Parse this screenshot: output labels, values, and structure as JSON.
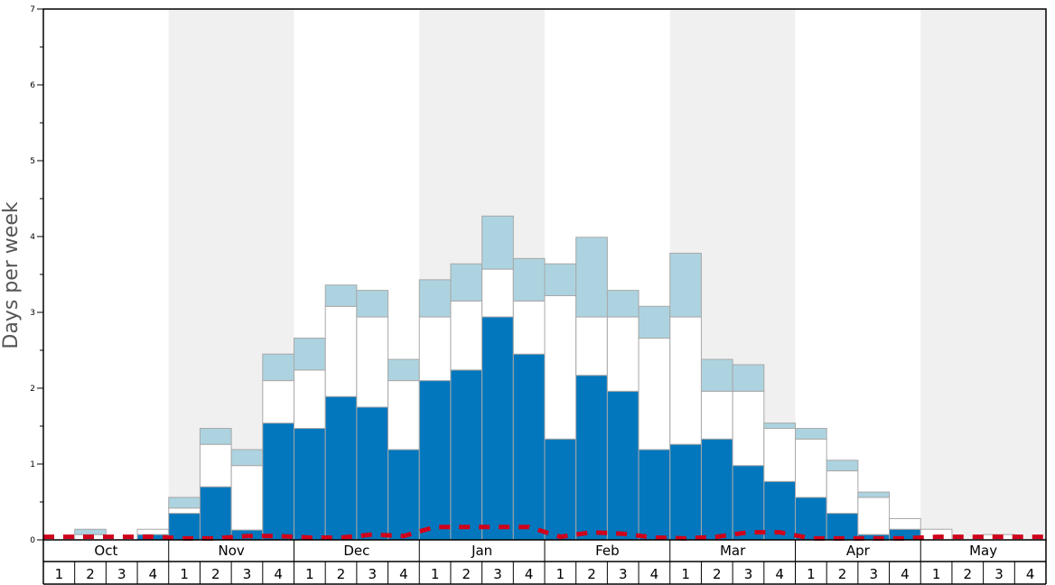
{
  "chart_data": {
    "type": "bar",
    "title": "",
    "xlabel": "",
    "ylabel": "Days per week",
    "ylim": [
      0,
      7
    ],
    "yticks": [
      0,
      1,
      2,
      3,
      4,
      5,
      6,
      7
    ],
    "months": [
      "Oct",
      "Nov",
      "Dec",
      "Jan",
      "Feb",
      "Mar",
      "Apr",
      "May"
    ],
    "week_labels": [
      "1",
      "2",
      "3",
      "4"
    ],
    "stacked": true,
    "series": [
      {
        "color": "#0277bd",
        "values": [
          0,
          0,
          0,
          0.07,
          0.35,
          0.7,
          0.13,
          1.54,
          1.47,
          1.89,
          1.75,
          1.19,
          2.1,
          2.24,
          2.94,
          2.45,
          1.33,
          2.17,
          1.96,
          1.19,
          1.26,
          1.33,
          0.98,
          0.77,
          0.56,
          0.35,
          0.07,
          0.14,
          0,
          0,
          0,
          0
        ]
      },
      {
        "color": "#ffffff",
        "values": [
          0,
          0.07,
          0,
          0.07,
          0.07,
          0.56,
          0.85,
          0.56,
          0.77,
          1.19,
          1.19,
          0.91,
          0.84,
          0.91,
          0.63,
          0.7,
          1.89,
          0.77,
          0.98,
          1.47,
          1.68,
          0.63,
          0.98,
          0.7,
          0.77,
          0.56,
          0.49,
          0.14,
          0.14,
          0,
          0.07,
          0
        ]
      },
      {
        "color": "#add3e0",
        "values": [
          0,
          0.07,
          0,
          0,
          0.14,
          0.21,
          0.21,
          0.35,
          0.42,
          0.28,
          0.35,
          0.28,
          0.49,
          0.49,
          0.7,
          0.56,
          0.42,
          1.05,
          0.35,
          0.42,
          0.84,
          0.42,
          0.35,
          0.07,
          0.14,
          0.14,
          0.07,
          0,
          0,
          0,
          0,
          0
        ]
      }
    ],
    "average_line": {
      "color": "#d0021b",
      "style": "dashed",
      "values": [
        0.04,
        0.04,
        0.04,
        0.04,
        0.02,
        0.02,
        0.05,
        0.05,
        0.03,
        0.03,
        0.07,
        0.05,
        0.17,
        0.17,
        0.17,
        0.17,
        0.04,
        0.1,
        0.08,
        0.03,
        0.02,
        0.04,
        0.1,
        0.1,
        0.02,
        0.02,
        0.02,
        0.02,
        0.04,
        0.04,
        0.04,
        0.04
      ]
    },
    "grid": false,
    "month_shading": {
      "odd": "#ffffff",
      "even": "#f0f0f0"
    }
  }
}
